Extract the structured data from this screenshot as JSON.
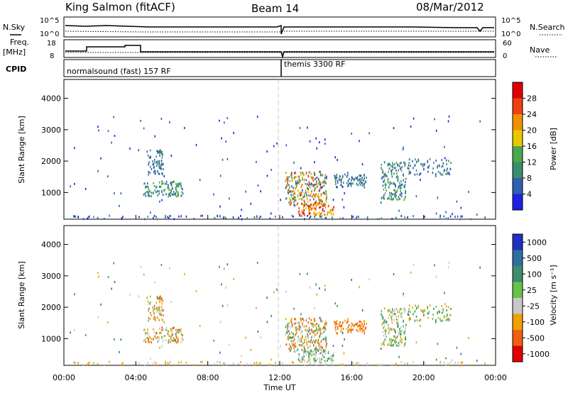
{
  "header": {
    "station": "King Salmon (fitACF)",
    "beam": "Beam 14",
    "date": "08/Mar/2012"
  },
  "top_panels": {
    "nsky_label": "N.Sky",
    "nsearch_label": "N.Search",
    "nsky_ticks": [
      "10^5",
      "10^0"
    ],
    "nsearch_ticks": [
      "10^5",
      "10^0"
    ],
    "freq_label": "Freq.",
    "freq_unit": "[MHz]",
    "freq_ticks": [
      "18",
      "8"
    ],
    "nave_label": "Nave",
    "nave_ticks": [
      "60",
      "0"
    ],
    "cpid_label": "CPID",
    "cpid_segments": [
      "normalsound (fast) 157 RF",
      "themis 3300 RF"
    ]
  },
  "chart_data": [
    {
      "type": "heatmap",
      "name": "power",
      "ylabel": "Slant Range [km]",
      "y_ticks": [
        "1000",
        "2000",
        "3000",
        "4000"
      ],
      "ylim": [
        150,
        4600
      ],
      "x_range_hours": [
        0,
        24
      ],
      "colorbar_label": "Power [dB]",
      "colorbar_ticks": [
        "4",
        "8",
        "12",
        "16",
        "20",
        "24",
        "28"
      ],
      "colorbar_colors": [
        "#2020e0",
        "#2f5fb0",
        "#3c8c6e",
        "#4aa84a",
        "#e8c800",
        "#f09000",
        "#f04010",
        "#e00000"
      ]
    },
    {
      "type": "heatmap",
      "name": "velocity",
      "ylabel": "Slant Range [km]",
      "y_ticks": [
        "1000",
        "2000",
        "3000",
        "4000"
      ],
      "ylim": [
        150,
        4600
      ],
      "x_range_hours": [
        0,
        24
      ],
      "xlabel": "Time UT",
      "x_ticks": [
        "00:00",
        "04:00",
        "08:00",
        "12:00",
        "16:00",
        "20:00",
        "00:00"
      ],
      "colorbar_label": "Velocity [m s⁻¹]",
      "colorbar_ticks": [
        "1000",
        "500",
        "100",
        "25",
        "-25",
        "-100",
        "-500",
        "-1000"
      ],
      "colorbar_colors": [
        "#2030c0",
        "#2f6fa0",
        "#3c8c6e",
        "#66c24a",
        "#c8c8c8",
        "#f0a000",
        "#f06010",
        "#e00000"
      ]
    }
  ]
}
